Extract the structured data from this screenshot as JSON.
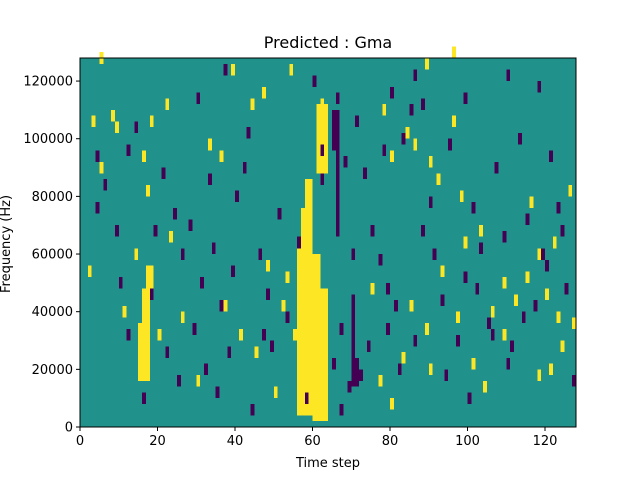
{
  "chart_data": {
    "type": "heatmap",
    "title": "Predicted : Gma",
    "xlabel": "Time step",
    "ylabel": "Frequency (Hz)",
    "xlim": [
      0,
      128
    ],
    "ylim": [
      0,
      128000
    ],
    "x_ticks": [
      0,
      20,
      40,
      60,
      80,
      100,
      120
    ],
    "y_ticks": [
      0,
      20000,
      40000,
      60000,
      80000,
      100000,
      120000
    ],
    "x_tick_labels": [
      "0",
      "20",
      "40",
      "60",
      "80",
      "100",
      "120"
    ],
    "y_tick_labels": [
      "0",
      "20000",
      "40000",
      "60000",
      "80000",
      "100000",
      "120000"
    ],
    "grid": false,
    "legend": "none",
    "n_time_steps": 128,
    "n_freq_bins": 64,
    "colors": {
      "background": "#21918c",
      "high": "#fde725",
      "low": "#440154"
    },
    "high_bands": [
      {
        "x": [
          56,
          60
        ],
        "y": [
          4000,
          66000
        ]
      },
      {
        "x": [
          57,
          60
        ],
        "y": [
          66000,
          76000
        ]
      },
      {
        "x": [
          58,
          60
        ],
        "y": [
          76000,
          86000
        ]
      },
      {
        "x": [
          60,
          64
        ],
        "y": [
          2000,
          48000
        ]
      },
      {
        "x": [
          60,
          62
        ],
        "y": [
          48000,
          60000
        ]
      },
      {
        "x": [
          61,
          64
        ],
        "y": [
          88000,
          112000
        ]
      },
      {
        "x": [
          62,
          64
        ],
        "y": [
          100000,
          110000
        ]
      },
      {
        "x": [
          15,
          18
        ],
        "y": [
          16000,
          36000
        ]
      },
      {
        "x": [
          16,
          18
        ],
        "y": [
          36000,
          48000
        ]
      },
      {
        "x": [
          17,
          19
        ],
        "y": [
          48000,
          56000
        ]
      }
    ],
    "low_bands": [
      {
        "x": [
          65,
          67
        ],
        "y": [
          96000,
          110000
        ]
      },
      {
        "x": [
          66,
          67
        ],
        "y": [
          66000,
          96000
        ]
      },
      {
        "x": [
          70,
          72
        ],
        "y": [
          14000,
          24000
        ]
      },
      {
        "x": [
          70,
          71
        ],
        "y": [
          24000,
          46000
        ]
      },
      {
        "x": [
          72,
          73
        ],
        "y": [
          16000,
          20000
        ]
      }
    ],
    "high_cells": [
      [
        5,
        126000
      ],
      [
        5,
        88000
      ],
      [
        8,
        106000
      ],
      [
        9,
        102000
      ],
      [
        16,
        92000
      ],
      [
        17,
        80000
      ],
      [
        18,
        104000
      ],
      [
        22,
        110000
      ],
      [
        33,
        96000
      ],
      [
        36,
        92000
      ],
      [
        39,
        122000
      ],
      [
        44,
        110000
      ],
      [
        47,
        114000
      ],
      [
        52,
        40000
      ],
      [
        53,
        50000
      ],
      [
        55,
        30000
      ],
      [
        62,
        110000
      ],
      [
        78,
        108000
      ],
      [
        80,
        92000
      ],
      [
        84,
        100000
      ],
      [
        86,
        96000
      ],
      [
        89,
        124000
      ],
      [
        90,
        90000
      ],
      [
        92,
        84000
      ],
      [
        96,
        104000
      ],
      [
        98,
        78000
      ],
      [
        99,
        62000
      ],
      [
        103,
        66000
      ],
      [
        106,
        38000
      ],
      [
        109,
        48000
      ],
      [
        112,
        42000
      ],
      [
        116,
        76000
      ],
      [
        118,
        58000
      ],
      [
        120,
        44000
      ],
      [
        121,
        18000
      ],
      [
        123,
        36000
      ],
      [
        124,
        26000
      ],
      [
        126,
        80000
      ],
      [
        127,
        34000
      ],
      [
        2,
        52000
      ],
      [
        3,
        104000
      ],
      [
        11,
        38000
      ],
      [
        14,
        58000
      ],
      [
        20,
        30000
      ],
      [
        26,
        36000
      ],
      [
        30,
        14000
      ],
      [
        37,
        40000
      ],
      [
        45,
        24000
      ],
      [
        48,
        54000
      ],
      [
        50,
        10000
      ],
      [
        75,
        46000
      ],
      [
        77,
        14000
      ],
      [
        80,
        6000
      ],
      [
        83,
        22000
      ],
      [
        85,
        40000
      ],
      [
        89,
        32000
      ],
      [
        93,
        52000
      ],
      [
        97,
        36000
      ],
      [
        101,
        20000
      ],
      [
        104,
        12000
      ],
      [
        109,
        30000
      ],
      [
        115,
        50000
      ],
      [
        118,
        16000
      ],
      [
        122,
        62000
      ],
      [
        41,
        30000
      ],
      [
        23,
        64000
      ],
      [
        90,
        18000
      ],
      [
        96,
        128000
      ],
      [
        54,
        122000
      ]
    ],
    "low_cells": [
      [
        4,
        92000
      ],
      [
        6,
        82000
      ],
      [
        9,
        66000
      ],
      [
        12,
        94000
      ],
      [
        14,
        102000
      ],
      [
        19,
        66000
      ],
      [
        21,
        86000
      ],
      [
        24,
        72000
      ],
      [
        26,
        58000
      ],
      [
        28,
        68000
      ],
      [
        31,
        48000
      ],
      [
        33,
        84000
      ],
      [
        34,
        60000
      ],
      [
        36,
        40000
      ],
      [
        39,
        52000
      ],
      [
        40,
        78000
      ],
      [
        42,
        88000
      ],
      [
        43,
        100000
      ],
      [
        46,
        58000
      ],
      [
        48,
        44000
      ],
      [
        49,
        26000
      ],
      [
        51,
        72000
      ],
      [
        53,
        36000
      ],
      [
        56,
        62000
      ],
      [
        62,
        84000
      ],
      [
        66,
        112000
      ],
      [
        68,
        90000
      ],
      [
        70,
        58000
      ],
      [
        71,
        104000
      ],
      [
        73,
        86000
      ],
      [
        75,
        66000
      ],
      [
        77,
        56000
      ],
      [
        78,
        94000
      ],
      [
        79,
        32000
      ],
      [
        81,
        40000
      ],
      [
        83,
        98000
      ],
      [
        85,
        108000
      ],
      [
        88,
        66000
      ],
      [
        90,
        76000
      ],
      [
        91,
        58000
      ],
      [
        93,
        42000
      ],
      [
        95,
        96000
      ],
      [
        97,
        28000
      ],
      [
        99,
        50000
      ],
      [
        101,
        74000
      ],
      [
        103,
        60000
      ],
      [
        105,
        34000
      ],
      [
        107,
        88000
      ],
      [
        109,
        64000
      ],
      [
        111,
        26000
      ],
      [
        113,
        98000
      ],
      [
        115,
        70000
      ],
      [
        117,
        40000
      ],
      [
        119,
        58000
      ],
      [
        121,
        92000
      ],
      [
        123,
        74000
      ],
      [
        125,
        46000
      ],
      [
        127,
        14000
      ],
      [
        10,
        48000
      ],
      [
        12,
        30000
      ],
      [
        16,
        8000
      ],
      [
        18,
        44000
      ],
      [
        22,
        24000
      ],
      [
        25,
        14000
      ],
      [
        29,
        32000
      ],
      [
        32,
        18000
      ],
      [
        35,
        10000
      ],
      [
        38,
        24000
      ],
      [
        44,
        4000
      ],
      [
        47,
        30000
      ],
      [
        58,
        8000
      ],
      [
        65,
        20000
      ],
      [
        67,
        32000
      ],
      [
        69,
        12000
      ],
      [
        74,
        26000
      ],
      [
        82,
        18000
      ],
      [
        86,
        28000
      ],
      [
        94,
        16000
      ],
      [
        100,
        8000
      ],
      [
        106,
        30000
      ],
      [
        110,
        20000
      ],
      [
        114,
        36000
      ],
      [
        120,
        54000
      ],
      [
        124,
        66000
      ],
      [
        30,
        112000
      ],
      [
        62,
        94000
      ],
      [
        67,
        4000
      ],
      [
        80,
        114000
      ],
      [
        86,
        120000
      ],
      [
        110,
        120000
      ],
      [
        118,
        116000
      ],
      [
        99,
        112000
      ],
      [
        88,
        110000
      ],
      [
        102,
        46000
      ],
      [
        79,
        46000
      ],
      [
        37,
        122000
      ],
      [
        60,
        118000
      ],
      [
        4,
        74000
      ]
    ]
  }
}
